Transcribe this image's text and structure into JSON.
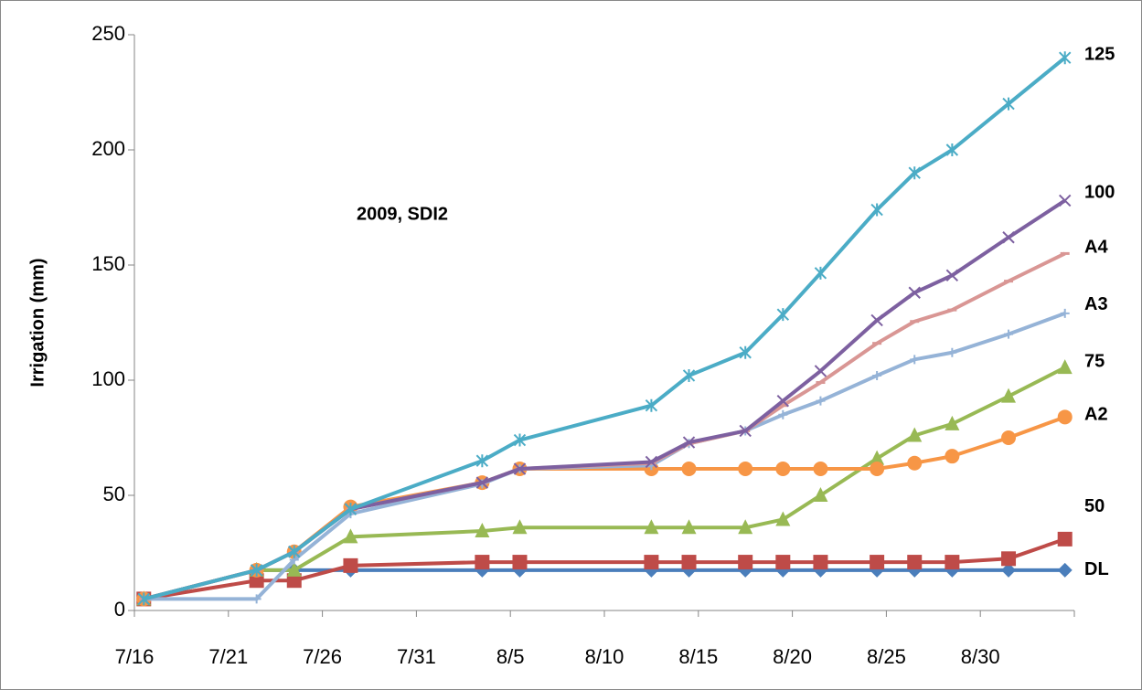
{
  "chart_data": {
    "type": "line",
    "annotation": "2009, SDI2",
    "y_label": "Irrigation (mm)",
    "x": [
      "7/16",
      "7/22",
      "7/24",
      "7/27",
      "8/3",
      "8/5",
      "8/12",
      "8/14",
      "8/17",
      "8/19",
      "8/21",
      "8/24",
      "8/26",
      "8/28",
      "8/31",
      "9/3"
    ],
    "xlim": [
      "7/16",
      "9/4"
    ],
    "xticks": [
      "7/16",
      "7/21",
      "7/26",
      "7/31",
      "8/5",
      "8/10",
      "8/15",
      "8/20",
      "8/25",
      "8/30"
    ],
    "ylim": [
      0,
      250
    ],
    "yticks": [
      0,
      50,
      100,
      150,
      200,
      250
    ],
    "grid": false,
    "series": [
      {
        "name": "DL",
        "color": "#4a7ebb",
        "marker": "diamond",
        "values": [
          5,
          17.5,
          17.5,
          17.5,
          17.5,
          17.5,
          17.5,
          17.5,
          17.5,
          17.5,
          17.5,
          17.5,
          17.5,
          17.5,
          17.5,
          17.5
        ]
      },
      {
        "name": "50",
        "color": "#be4b48",
        "marker": "square",
        "values": [
          5,
          13,
          13,
          19.5,
          21,
          21,
          21,
          21,
          21,
          21,
          21,
          21,
          21,
          21,
          22.5,
          31
        ]
      },
      {
        "name": "75",
        "color": "#98b954",
        "marker": "triangle",
        "values": [
          5,
          17.5,
          17.5,
          32,
          34.5,
          36,
          36,
          36,
          36,
          39.5,
          50,
          66,
          76,
          81,
          93,
          105.5
        ]
      },
      {
        "name": "A2",
        "color": "#f79646",
        "marker": "circle",
        "values": [
          5,
          17.5,
          25.5,
          45,
          55.5,
          61.5,
          61.5,
          61.5,
          61.5,
          61.5,
          61.5,
          61.5,
          64,
          67,
          75,
          84
        ]
      },
      {
        "name": "A3",
        "color": "#95b3d7",
        "marker": "plus",
        "values": [
          5,
          5,
          22,
          42,
          55,
          61.5,
          63,
          72.5,
          78,
          85,
          91,
          102,
          109,
          112,
          120,
          129
        ]
      },
      {
        "name": "A4",
        "color": "#d99694",
        "marker": "dash",
        "values": [
          5,
          17.5,
          25.5,
          44,
          55.5,
          61.5,
          64,
          72.5,
          78,
          89,
          99,
          116,
          125.5,
          130.5,
          143,
          155
        ]
      },
      {
        "name": "100",
        "color": "#7d60a0",
        "marker": "x",
        "values": [
          5,
          17.5,
          25.5,
          44,
          55.5,
          61.5,
          64.5,
          73,
          78,
          91,
          104,
          126,
          138,
          145.5,
          162,
          178
        ]
      },
      {
        "name": "125",
        "color": "#4bacc6",
        "marker": "star",
        "values": [
          5,
          17.5,
          25.5,
          44,
          65,
          74,
          89,
          102,
          112,
          128.5,
          146.5,
          174,
          190,
          200,
          220,
          240
        ]
      }
    ]
  }
}
